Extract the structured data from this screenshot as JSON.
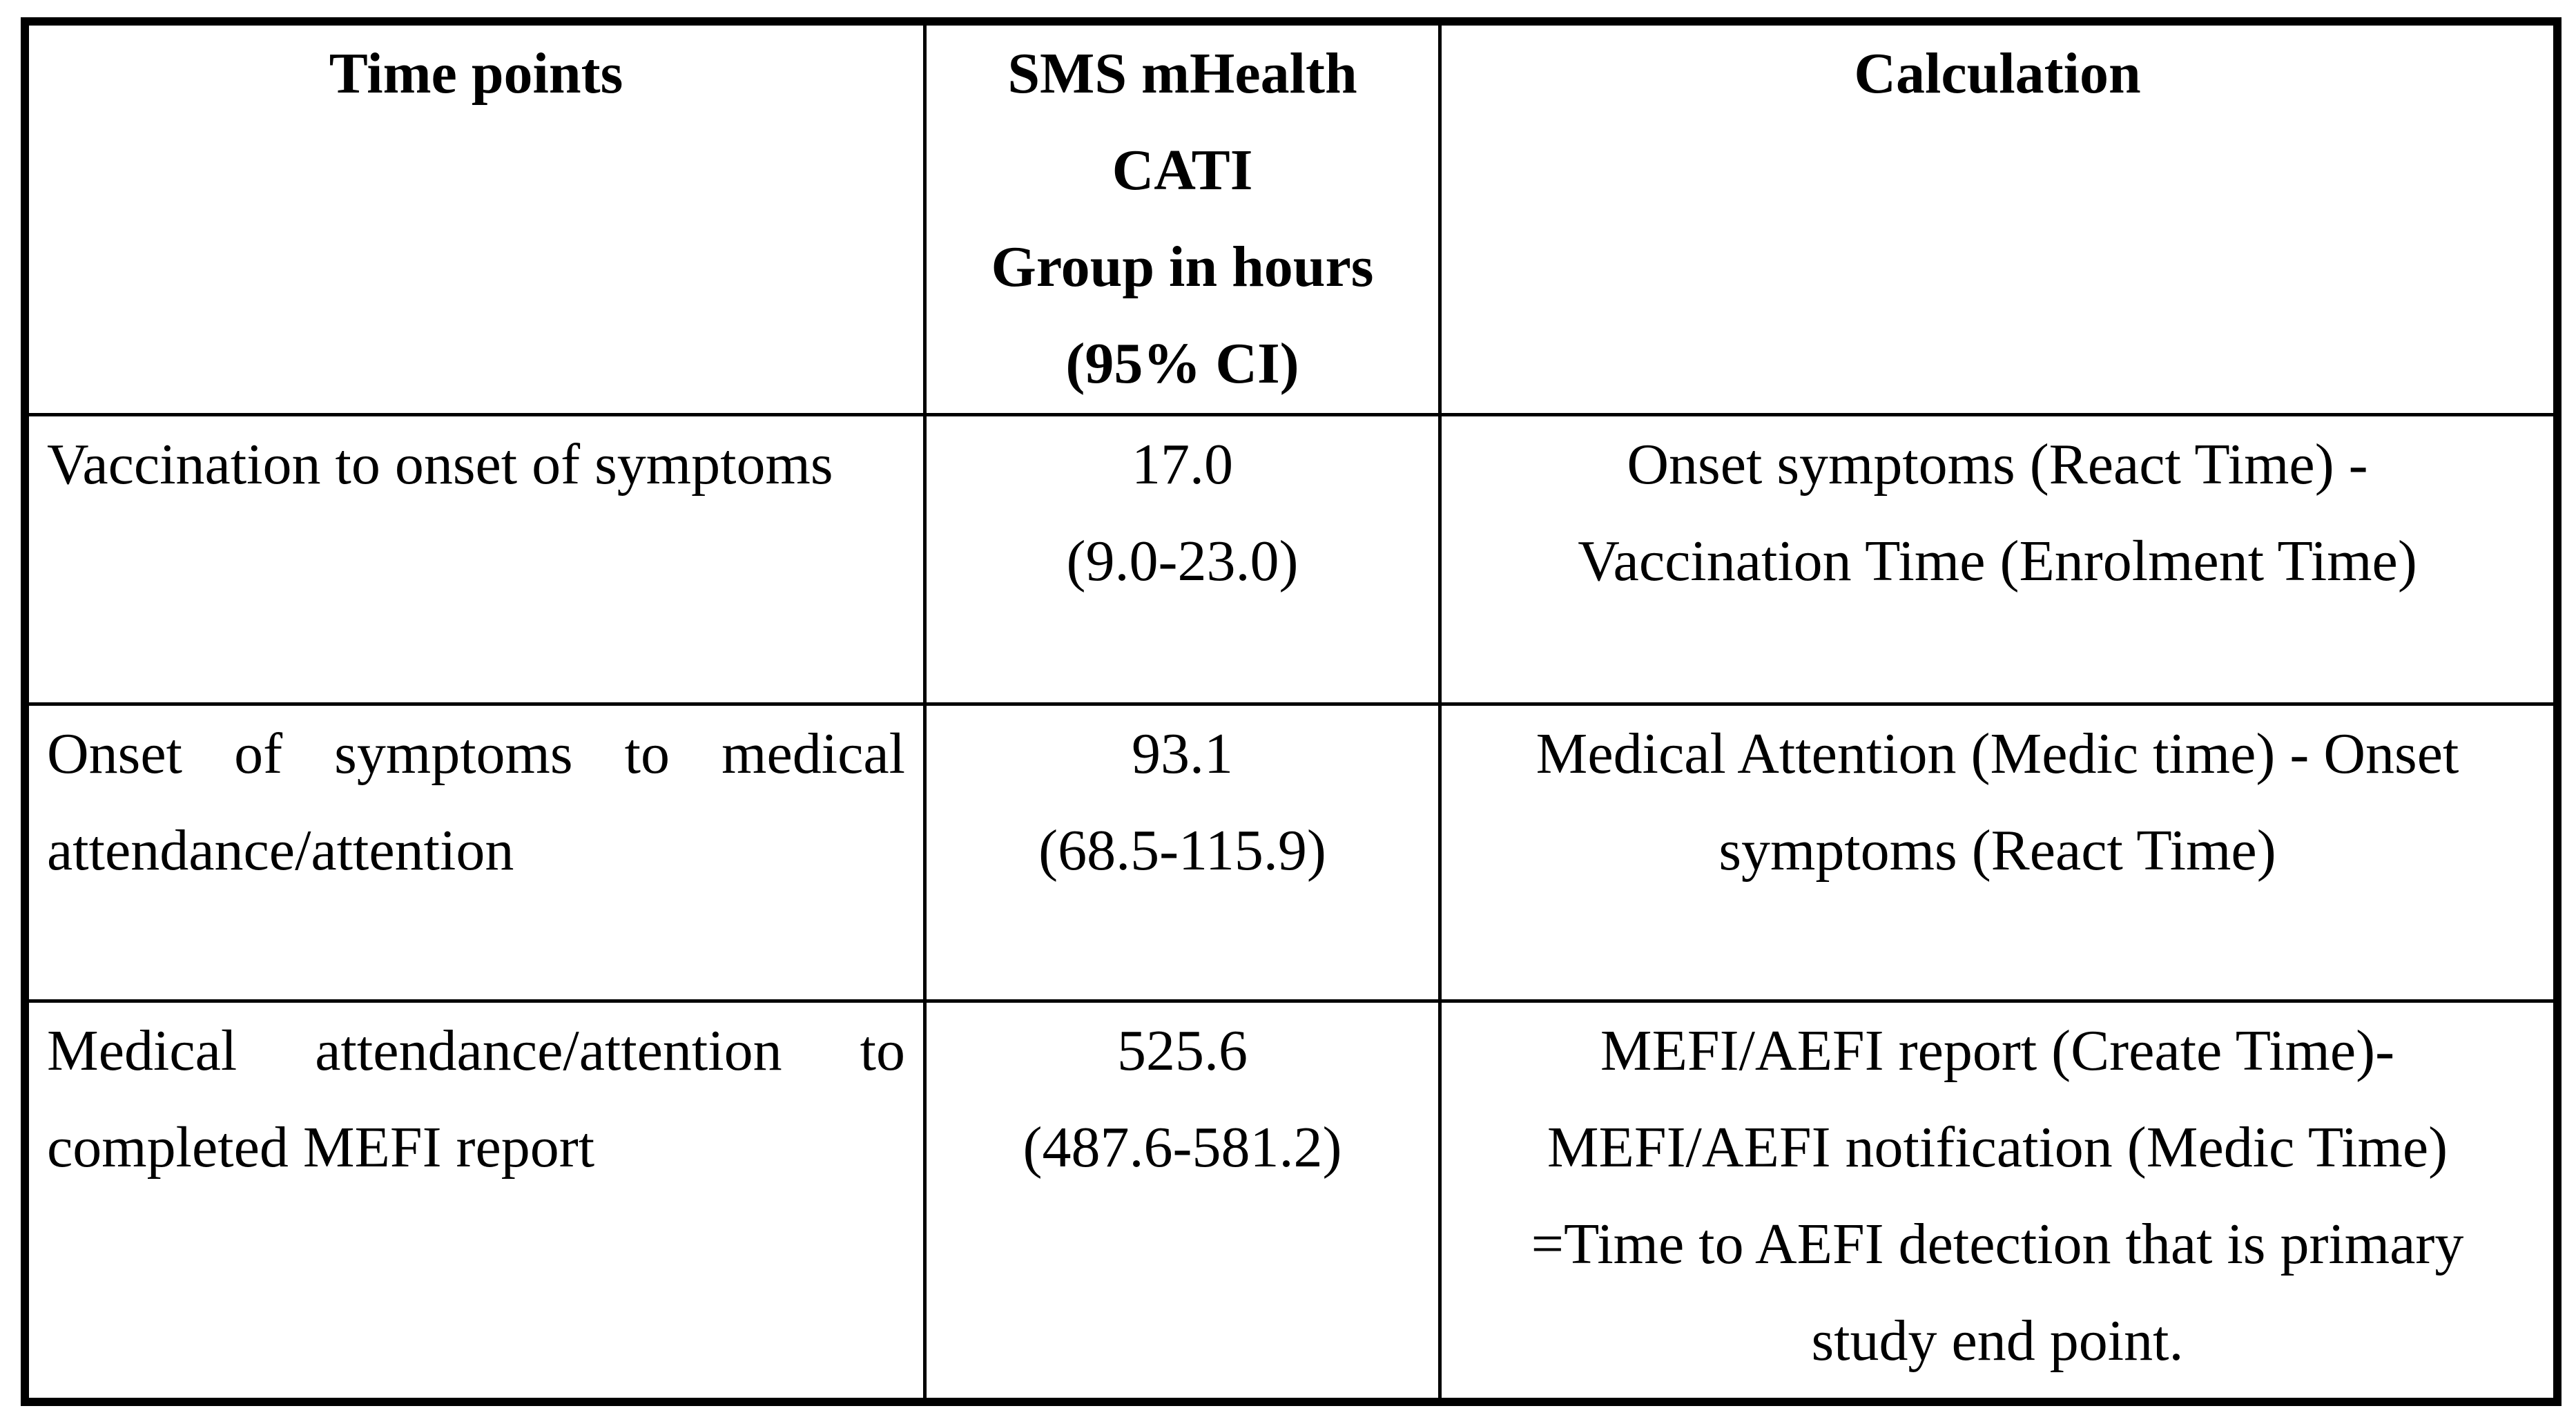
{
  "colors": {
    "text": "#000000",
    "border": "#000000",
    "background": "#ffffff"
  },
  "table": {
    "header": [
      {
        "lines": [
          "Time points"
        ],
        "align": "center",
        "justify": false
      },
      {
        "lines": [
          "SMS mHealth",
          "CATI",
          "Group in hours",
          "(95% CI)"
        ],
        "align": "center",
        "justify": false
      },
      {
        "lines": [
          "Calculation"
        ],
        "align": "center",
        "justify": false
      }
    ],
    "rows": [
      {
        "cells": [
          {
            "lines": [
              "Vaccination to onset of symptoms"
            ],
            "align": "left",
            "justify": false
          },
          {
            "lines": [
              "17.0",
              "(9.0-23.0)"
            ],
            "align": "center",
            "justify": false
          },
          {
            "lines": [
              "Onset symptoms (React Time) -",
              "Vaccination Time (Enrolment Time)"
            ],
            "align": "center",
            "justify": false
          }
        ]
      },
      {
        "cells": [
          {
            "lines": [
              "Onset of symptoms to medical",
              "attendance/attention"
            ],
            "align": "left",
            "justify": true
          },
          {
            "lines": [
              "93.1",
              "(68.5-115.9)"
            ],
            "align": "center",
            "justify": false
          },
          {
            "lines": [
              "Medical Attention (Medic time) - Onset",
              "symptoms (React Time)"
            ],
            "align": "center",
            "justify": false
          }
        ]
      },
      {
        "cells": [
          {
            "lines": [
              "Medical attendance/attention to",
              "completed MEFI report"
            ],
            "align": "left",
            "justify": true
          },
          {
            "lines": [
              "525.6",
              "(487.6-581.2)"
            ],
            "align": "center",
            "justify": false
          },
          {
            "lines": [
              "MEFI/AEFI report (Create Time)-",
              "MEFI/AEFI notification (Medic Time)",
              "=Time to AEFI detection that is primary",
              "study end point."
            ],
            "align": "center",
            "justify": false
          }
        ]
      }
    ]
  }
}
